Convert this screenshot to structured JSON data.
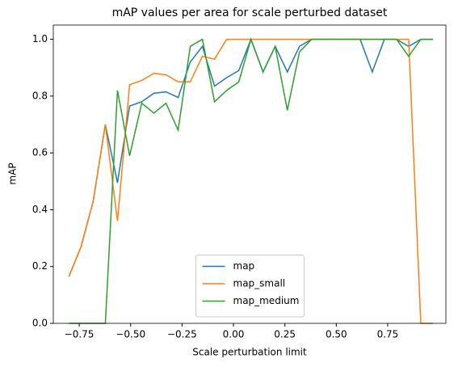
{
  "chart_data": {
    "type": "line",
    "title": "mAP values per area for scale perturbed dataset",
    "x_label": "Scale perturbation limit",
    "y_label": "mAP",
    "x": [
      -0.8,
      -0.741,
      -0.682,
      -0.623,
      -0.564,
      -0.505,
      -0.446,
      -0.387,
      -0.328,
      -0.269,
      -0.21,
      -0.151,
      -0.092,
      -0.033,
      0.026,
      0.085,
      0.144,
      0.203,
      0.262,
      0.321,
      0.38,
      0.439,
      0.498,
      0.557,
      0.616,
      0.675,
      0.734,
      0.793,
      0.852,
      0.911,
      0.97
    ],
    "series": [
      {
        "name": "map",
        "color": "#1f77b4",
        "values": [
          0.165,
          0.27,
          0.43,
          0.7,
          0.495,
          0.765,
          0.78,
          0.81,
          0.815,
          0.795,
          0.92,
          0.975,
          0.835,
          0.865,
          0.89,
          1.0,
          0.885,
          0.975,
          0.885,
          0.975,
          1.0,
          1.0,
          1.0,
          1.0,
          1.0,
          0.885,
          1.0,
          1.0,
          0.975,
          1.0,
          1.0
        ]
      },
      {
        "name": "map_small",
        "color": "#ff7f0e",
        "values": [
          0.165,
          0.27,
          0.43,
          0.7,
          0.36,
          0.84,
          0.855,
          0.88,
          0.875,
          0.85,
          0.85,
          0.94,
          0.93,
          1.0,
          1.0,
          1.0,
          1.0,
          1.0,
          1.0,
          1.0,
          1.0,
          1.0,
          1.0,
          1.0,
          1.0,
          1.0,
          1.0,
          1.0,
          1.0,
          0.0,
          0.0
        ]
      },
      {
        "name": "map_medium",
        "color": "#2ca02c",
        "values": [
          0,
          0,
          0,
          0,
          0.82,
          0.59,
          0.775,
          0.74,
          0.775,
          0.68,
          0.975,
          1.0,
          0.78,
          0.82,
          0.85,
          1.0,
          0.885,
          0.975,
          0.75,
          0.955,
          1.0,
          1.0,
          1.0,
          1.0,
          1.0,
          1.0,
          1.0,
          1.0,
          0.94,
          1.0,
          1.0
        ]
      }
    ],
    "xlim": [
      -0.876,
      1.033
    ],
    "ylim": [
      0,
      1.05
    ],
    "xticks": [
      {
        "value": -0.75,
        "label": "−0.75"
      },
      {
        "value": -0.5,
        "label": "−0.50"
      },
      {
        "value": -0.25,
        "label": "−0.25"
      },
      {
        "value": 0,
        "label": "0.00"
      },
      {
        "value": 0.25,
        "label": "0.25"
      },
      {
        "value": 0.5,
        "label": "0.50"
      },
      {
        "value": 0.75,
        "label": "0.75"
      }
    ],
    "yticks": [
      {
        "value": 0,
        "label": "0.0"
      },
      {
        "value": 0.2,
        "label": "0.2"
      },
      {
        "value": 0.4,
        "label": "0.4"
      },
      {
        "value": 0.6,
        "label": "0.6"
      },
      {
        "value": 0.8,
        "label": "0.8"
      },
      {
        "value": 1,
        "label": "1.0"
      }
    ],
    "grid": false,
    "legend": "lower center"
  }
}
